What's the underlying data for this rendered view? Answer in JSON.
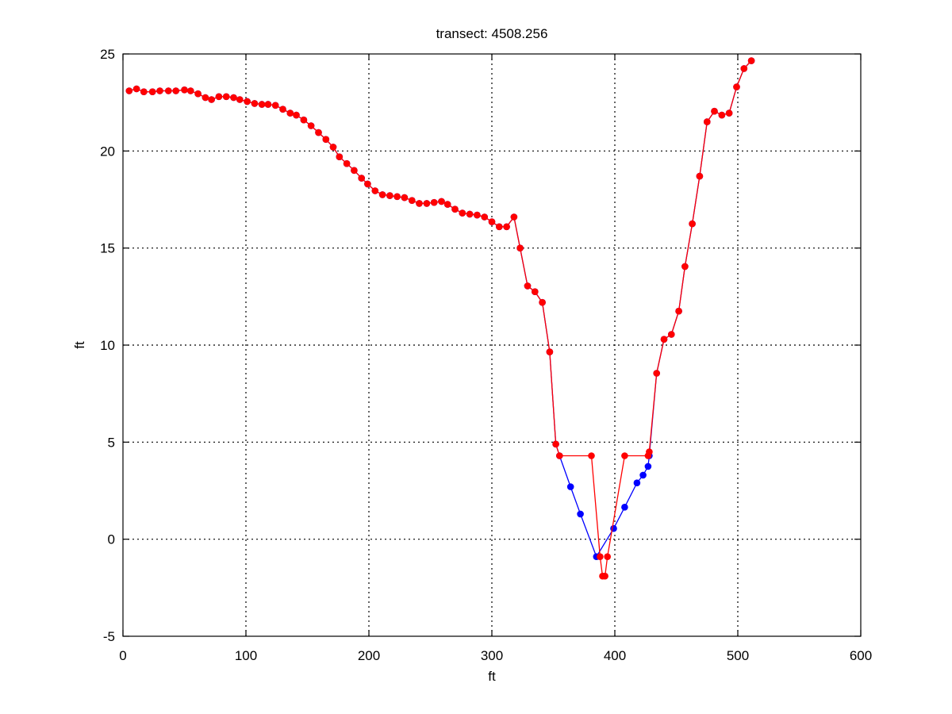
{
  "chart_data": {
    "type": "line",
    "title": "transect: 4508.256",
    "xlabel": "ft",
    "ylabel": "ft",
    "xlim": [
      0,
      600
    ],
    "ylim": [
      -5,
      25
    ],
    "xticks": [
      "0",
      "100",
      "200",
      "300",
      "400",
      "500",
      "600"
    ],
    "yticks": [
      "-5",
      "0",
      "5",
      "10",
      "15",
      "20",
      "25"
    ],
    "grid": true,
    "series": [
      {
        "color": "#0000ff",
        "points": [
          [
            5,
            23.1
          ],
          [
            11,
            23.2
          ],
          [
            17,
            23.05
          ],
          [
            24,
            23.05
          ],
          [
            30,
            23.1
          ],
          [
            37,
            23.1
          ],
          [
            43,
            23.1
          ],
          [
            50,
            23.15
          ],
          [
            55,
            23.1
          ],
          [
            61,
            22.95
          ],
          [
            67,
            22.75
          ],
          [
            72,
            22.65
          ],
          [
            78,
            22.8
          ],
          [
            84,
            22.8
          ],
          [
            90,
            22.75
          ],
          [
            95,
            22.65
          ],
          [
            101,
            22.55
          ],
          [
            107,
            22.45
          ],
          [
            113,
            22.4
          ],
          [
            118,
            22.4
          ],
          [
            124,
            22.35
          ],
          [
            130,
            22.15
          ],
          [
            136,
            21.95
          ],
          [
            141,
            21.85
          ],
          [
            147,
            21.6
          ],
          [
            153,
            21.3
          ],
          [
            159,
            20.95
          ],
          [
            165,
            20.6
          ],
          [
            171,
            20.2
          ],
          [
            176,
            19.7
          ],
          [
            182,
            19.35
          ],
          [
            188,
            19.0
          ],
          [
            194,
            18.6
          ],
          [
            199,
            18.3
          ],
          [
            205,
            17.95
          ],
          [
            211,
            17.75
          ],
          [
            217,
            17.7
          ],
          [
            223,
            17.65
          ],
          [
            229,
            17.6
          ],
          [
            235,
            17.45
          ],
          [
            241,
            17.3
          ],
          [
            247,
            17.3
          ],
          [
            253,
            17.35
          ],
          [
            259,
            17.4
          ],
          [
            264,
            17.25
          ],
          [
            270,
            17.0
          ],
          [
            276,
            16.8
          ],
          [
            282,
            16.75
          ],
          [
            288,
            16.7
          ],
          [
            294,
            16.6
          ],
          [
            300,
            16.35
          ],
          [
            306,
            16.1
          ],
          [
            312,
            16.1
          ],
          [
            318,
            16.6
          ],
          [
            323,
            15.0
          ],
          [
            329,
            13.05
          ],
          [
            335,
            12.75
          ],
          [
            341,
            12.2
          ],
          [
            347,
            9.65
          ],
          [
            352,
            4.9
          ],
          [
            355,
            4.3
          ],
          [
            364,
            2.7
          ],
          [
            372,
            1.3
          ],
          [
            385,
            -0.9
          ],
          [
            399,
            0.55
          ],
          [
            408,
            1.65
          ],
          [
            418,
            2.9
          ],
          [
            423,
            3.3
          ],
          [
            427,
            3.75
          ],
          [
            428,
            4.3
          ],
          [
            434,
            8.55
          ],
          [
            440,
            10.3
          ],
          [
            446,
            10.55
          ],
          [
            452,
            11.75
          ],
          [
            457,
            14.05
          ],
          [
            463,
            16.25
          ],
          [
            469,
            18.7
          ],
          [
            475,
            21.5
          ],
          [
            481,
            22.05
          ],
          [
            487,
            21.85
          ],
          [
            493,
            21.95
          ],
          [
            499,
            23.3
          ],
          [
            505,
            24.25
          ],
          [
            511,
            24.65
          ]
        ]
      },
      {
        "color": "#ff0000",
        "points": [
          [
            5,
            23.1
          ],
          [
            11,
            23.2
          ],
          [
            17,
            23.05
          ],
          [
            24,
            23.05
          ],
          [
            30,
            23.1
          ],
          [
            37,
            23.1
          ],
          [
            43,
            23.1
          ],
          [
            50,
            23.15
          ],
          [
            55,
            23.1
          ],
          [
            61,
            22.95
          ],
          [
            67,
            22.75
          ],
          [
            72,
            22.65
          ],
          [
            78,
            22.8
          ],
          [
            84,
            22.8
          ],
          [
            90,
            22.75
          ],
          [
            95,
            22.65
          ],
          [
            101,
            22.55
          ],
          [
            107,
            22.45
          ],
          [
            113,
            22.4
          ],
          [
            118,
            22.4
          ],
          [
            124,
            22.35
          ],
          [
            130,
            22.15
          ],
          [
            136,
            21.95
          ],
          [
            141,
            21.85
          ],
          [
            147,
            21.6
          ],
          [
            153,
            21.3
          ],
          [
            159,
            20.95
          ],
          [
            165,
            20.6
          ],
          [
            171,
            20.2
          ],
          [
            176,
            19.7
          ],
          [
            182,
            19.35
          ],
          [
            188,
            19.0
          ],
          [
            194,
            18.6
          ],
          [
            199,
            18.3
          ],
          [
            205,
            17.95
          ],
          [
            211,
            17.75
          ],
          [
            217,
            17.7
          ],
          [
            223,
            17.65
          ],
          [
            229,
            17.6
          ],
          [
            235,
            17.45
          ],
          [
            241,
            17.3
          ],
          [
            247,
            17.3
          ],
          [
            253,
            17.35
          ],
          [
            259,
            17.4
          ],
          [
            264,
            17.25
          ],
          [
            270,
            17.0
          ],
          [
            276,
            16.8
          ],
          [
            282,
            16.75
          ],
          [
            288,
            16.7
          ],
          [
            294,
            16.6
          ],
          [
            300,
            16.35
          ],
          [
            306,
            16.1
          ],
          [
            312,
            16.1
          ],
          [
            318,
            16.6
          ],
          [
            323,
            15.0
          ],
          [
            329,
            13.05
          ],
          [
            335,
            12.75
          ],
          [
            341,
            12.2
          ],
          [
            347,
            9.65
          ],
          [
            352,
            4.9
          ],
          [
            355,
            4.3
          ],
          [
            381,
            4.3
          ],
          [
            388,
            -0.9
          ],
          [
            390,
            -1.9
          ],
          [
            392,
            -1.9
          ],
          [
            394,
            -0.9
          ],
          [
            408,
            4.3
          ],
          [
            427,
            4.3
          ],
          [
            428,
            4.5
          ],
          [
            434,
            8.55
          ],
          [
            440,
            10.3
          ],
          [
            446,
            10.55
          ],
          [
            452,
            11.75
          ],
          [
            457,
            14.05
          ],
          [
            463,
            16.25
          ],
          [
            469,
            18.7
          ],
          [
            475,
            21.5
          ],
          [
            481,
            22.05
          ],
          [
            487,
            21.85
          ],
          [
            493,
            21.95
          ],
          [
            499,
            23.3
          ],
          [
            505,
            24.25
          ],
          [
            511,
            24.65
          ]
        ]
      }
    ]
  }
}
